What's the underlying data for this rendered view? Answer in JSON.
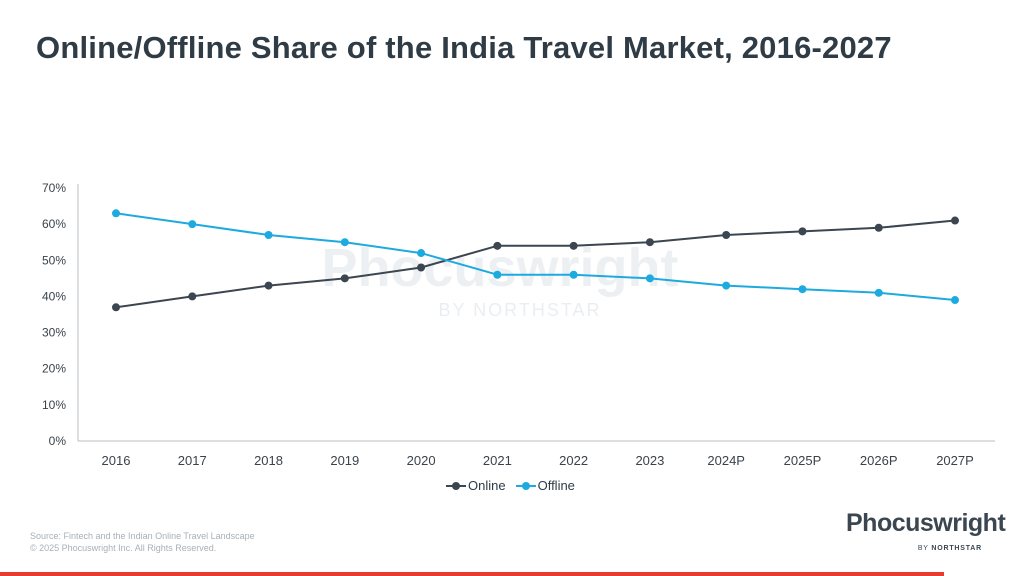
{
  "title": "Online/Offline Share of the India Travel Market, 2016-2027",
  "watermark": {
    "main": "Phocuswright",
    "sub": "BY NORTHSTAR"
  },
  "legend": {
    "online": "Online",
    "offline": "Offline"
  },
  "footer": {
    "source": "Source: Fintech and the Indian Online Travel Landscape",
    "copyright": "© 2025 Phocuswright Inc. All Rights Reserved."
  },
  "logo": {
    "main": "Phocuswright",
    "sub_prefix": "BY ",
    "sub_strong": "NORTHSTAR"
  },
  "colors": {
    "online": "#3b4650",
    "offline": "#1daadf",
    "axis": "#b9bfc5",
    "tick_text": "#3a434b",
    "accent_bar": "#e63b2e"
  },
  "chart_data": {
    "type": "line",
    "title": "Online/Offline Share of the India Travel Market, 2016-2027",
    "x": [
      "2016",
      "2017",
      "2018",
      "2019",
      "2020",
      "2021",
      "2022",
      "2023",
      "2024P",
      "2025P",
      "2026P",
      "2027P"
    ],
    "y_ticks": [
      "0%",
      "10%",
      "20%",
      "30%",
      "40%",
      "50%",
      "60%",
      "70%"
    ],
    "ylim": [
      0,
      70
    ],
    "grid": false,
    "legend_position": "bottom",
    "series": [
      {
        "name": "Online",
        "values": [
          37,
          40,
          43,
          45,
          48,
          54,
          54,
          55,
          57,
          58,
          59,
          61
        ]
      },
      {
        "name": "Offline",
        "values": [
          63,
          60,
          57,
          55,
          52,
          46,
          46,
          45,
          43,
          42,
          41,
          39
        ]
      }
    ]
  }
}
